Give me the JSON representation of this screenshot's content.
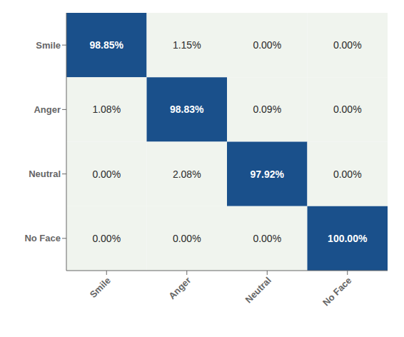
{
  "chart_data": {
    "type": "heatmap",
    "categories": [
      "Smile",
      "Anger",
      "Neutral",
      "No Face"
    ],
    "values": [
      [
        98.85,
        1.15,
        0.0,
        0.0
      ],
      [
        1.08,
        98.83,
        0.09,
        0.0
      ],
      [
        0.0,
        2.08,
        97.92,
        0.0
      ],
      [
        0.0,
        0.0,
        0.0,
        100.0
      ]
    ],
    "value_labels": [
      [
        "98.85%",
        "1.15%",
        "0.00%",
        "0.00%"
      ],
      [
        "1.08%",
        "98.83%",
        "0.09%",
        "0.00%"
      ],
      [
        "0.00%",
        "2.08%",
        "97.92%",
        "0.00%"
      ],
      [
        "0.00%",
        "0.00%",
        "0.00%",
        "100.00%"
      ]
    ],
    "colors": [
      [
        "#1a508b",
        "#f0f4ee",
        "#f0f4ee",
        "#f0f4ee"
      ],
      [
        "#f0f4ee",
        "#1a508b",
        "#f0f4ee",
        "#f0f4ee"
      ],
      [
        "#f0f4ee",
        "#f0f4ee",
        "#1a508b",
        "#f0f4ee"
      ],
      [
        "#f0f4ee",
        "#f0f4ee",
        "#f0f4ee",
        "#1a508b"
      ]
    ],
    "data_labels": true
  }
}
